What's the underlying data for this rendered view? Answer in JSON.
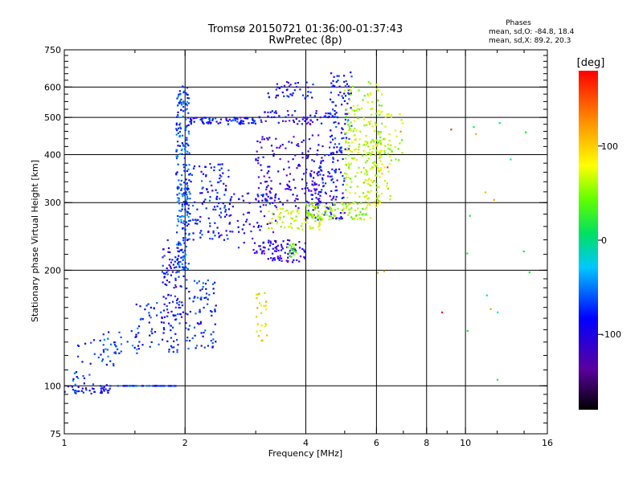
{
  "chart_data": {
    "type": "scatter",
    "title": "Tromsø 20150721 01:36:00-01:37:43",
    "subtitle": "RwPretec (8p)",
    "xlabel": "Frequency [MHz]",
    "ylabel": "Stationary phase Virtual Height [km]",
    "x_scale": "log",
    "y_scale": "log",
    "xlim": [
      1,
      16
    ],
    "ylim": [
      75,
      750
    ],
    "x_ticks": [
      1,
      2,
      4,
      6,
      8,
      10,
      16
    ],
    "x_tick_labels": [
      "1",
      "2",
      "4",
      "6",
      "8",
      "10",
      "16"
    ],
    "y_ticks": [
      75,
      100,
      200,
      300,
      400,
      500,
      600,
      750
    ],
    "y_tick_labels": [
      "75",
      "100",
      "200",
      "300",
      "400",
      "500",
      "600",
      "750"
    ],
    "grid_x": [
      2,
      4,
      6,
      8,
      10
    ],
    "grid_y": [
      100,
      200,
      300,
      400,
      500,
      600
    ],
    "colorbar": {
      "label": "[deg]",
      "range": [
        -180,
        180
      ],
      "ticks": [
        100,
        0,
        -100
      ],
      "tick_labels": [
        "100",
        "0",
        "-100"
      ]
    },
    "info": {
      "heading": "Phases",
      "line1": "mean, sd,O: -84.8, 18.4",
      "line2": "mean, sd,X:  89.2, 20.3"
    },
    "series": [
      {
        "segments": [
          {
            "x": [
              1.0,
              1.3
            ],
            "y": [
              95,
              100
            ],
            "phase": -100,
            "n": 40
          },
          {
            "x": [
              1.3,
              1.9
            ],
            "y": [
              100,
              100
            ],
            "phase": -90,
            "n": 50
          },
          {
            "x": [
              1.05,
              1.35
            ],
            "y": [
              100,
              135
            ],
            "phase": -85,
            "n": 40
          },
          {
            "x": [
              1.25,
              1.55
            ],
            "y": [
              120,
              142
            ],
            "phase": -80,
            "n": 25
          },
          {
            "x": [
              1.5,
              1.95
            ],
            "y": [
              122,
              165
            ],
            "phase": -95,
            "n": 70
          },
          {
            "x": [
              1.75,
              2.0
            ],
            "y": [
              150,
              240
            ],
            "phase": -100,
            "n": 90
          },
          {
            "x": [
              1.9,
              2.05
            ],
            "y": [
              200,
              610
            ],
            "phase": -80,
            "n": 230
          },
          {
            "x": [
              2.0,
              2.4
            ],
            "y": [
              125,
              190
            ],
            "phase": -90,
            "n": 80
          },
          {
            "x": [
              2.0,
              2.6
            ],
            "y": [
              240,
              380
            ],
            "phase": -95,
            "n": 130
          },
          {
            "x": [
              2.0,
              3.0
            ],
            "y": [
              480,
              500
            ],
            "phase": -100,
            "n": 80
          },
          {
            "x": [
              2.5,
              3.4
            ],
            "y": [
              220,
              320
            ],
            "phase": -105,
            "n": 80
          },
          {
            "x": [
              3.0,
              4.0
            ],
            "y": [
              210,
              240
            ],
            "phase": -115,
            "n": 80
          },
          {
            "x": [
              3.0,
              4.5
            ],
            "y": [
              290,
              450
            ],
            "phase": -120,
            "n": 150
          },
          {
            "x": [
              3.0,
              4.6
            ],
            "y": [
              480,
              520
            ],
            "phase": -110,
            "n": 60
          },
          {
            "x": [
              3.2,
              4.2
            ],
            "y": [
              560,
              620
            ],
            "phase": -105,
            "n": 40
          },
          {
            "x": [
              4.0,
              5.0
            ],
            "y": [
              270,
              420
            ],
            "phase": -105,
            "n": 130
          },
          {
            "x": [
              4.6,
              5.2
            ],
            "y": [
              400,
              660
            ],
            "phase": -95,
            "n": 90
          },
          {
            "x": [
              3.2,
              4.4
            ],
            "y": [
              255,
              290
            ],
            "phase": 95,
            "n": 70
          },
          {
            "x": [
              4.0,
              5.8
            ],
            "y": [
              270,
              300
            ],
            "phase": 80,
            "n": 90
          },
          {
            "x": [
              5.0,
              6.2
            ],
            "y": [
              290,
              620
            ],
            "phase": 90,
            "n": 200
          },
          {
            "x": [
              5.6,
              6.5
            ],
            "y": [
              300,
              440
            ],
            "phase": 100,
            "n": 60
          },
          {
            "x": [
              6.0,
              7.0
            ],
            "y": [
              380,
              520
            ],
            "phase": 85,
            "n": 40
          },
          {
            "x": [
              3.6,
              3.8
            ],
            "y": [
              215,
              235
            ],
            "phase": 60,
            "n": 20
          },
          {
            "x": [
              3.0,
              3.2
            ],
            "y": [
              130,
              175
            ],
            "phase": 110,
            "n": 25
          },
          {
            "x": [
              10.0,
              15.0
            ],
            "y": [
              100,
              600
            ],
            "phase": 20,
            "n": 12
          },
          {
            "x": [
              6.0,
              12.0
            ],
            "y": [
              150,
              500
            ],
            "phase": 150,
            "n": 10
          }
        ]
      }
    ]
  }
}
